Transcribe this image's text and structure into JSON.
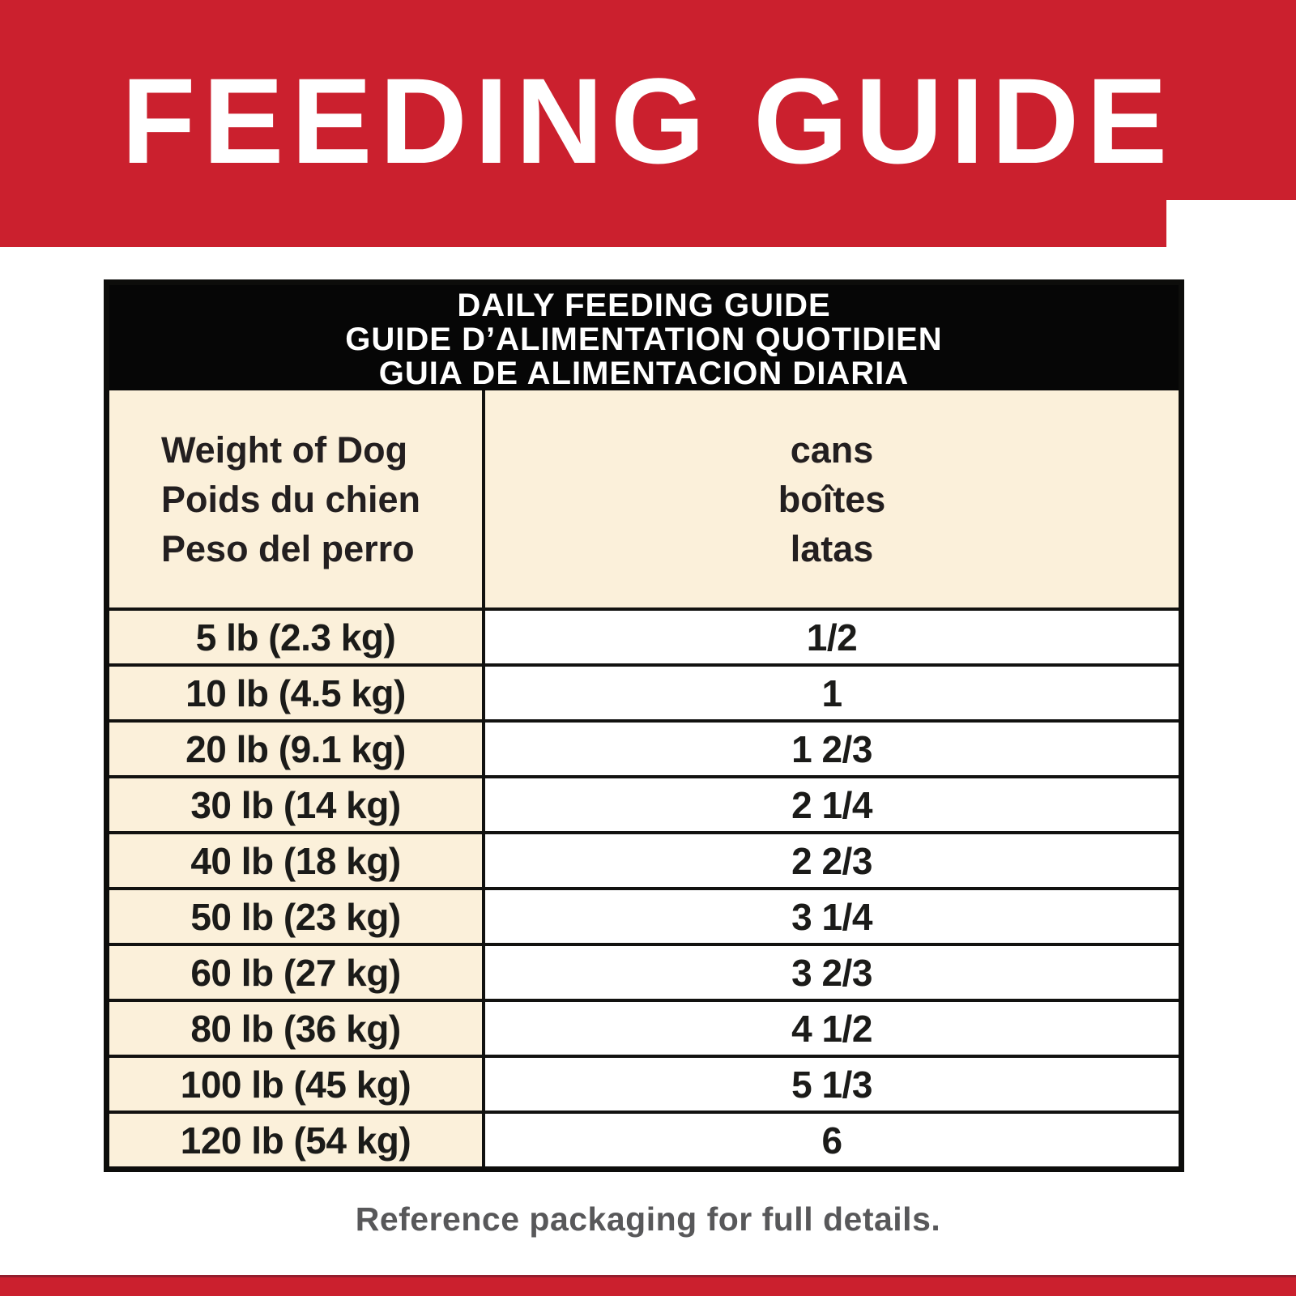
{
  "banner": {
    "title": "FEEDING GUIDE",
    "bg_color": "#cb202e",
    "text_color": "#ffffff"
  },
  "table": {
    "title_lines": [
      "DAILY FEEDING GUIDE",
      "GUIDE D’ALIMENTATION QUOTIDIEN",
      "GUIA DE ALIMENTACION DIARIA"
    ],
    "weight_header_lines": [
      "Weight of Dog",
      "Poids du chien",
      "Peso del perro"
    ],
    "cans_header_lines": [
      "cans",
      "boîtes",
      "latas"
    ],
    "rows": [
      {
        "weight": "5 lb (2.3 kg)",
        "cans": "1/2"
      },
      {
        "weight": "10 lb (4.5 kg)",
        "cans": "1"
      },
      {
        "weight": "20 lb (9.1 kg)",
        "cans": "1 2/3"
      },
      {
        "weight": "30 lb (14 kg)",
        "cans": "2 1/4"
      },
      {
        "weight": "40 lb (18 kg)",
        "cans": "2 2/3"
      },
      {
        "weight": "50 lb (23 kg)",
        "cans": "3 1/4"
      },
      {
        "weight": "60 lb (27 kg)",
        "cans": "3 2/3"
      },
      {
        "weight": "80 lb (36 kg)",
        "cans": "4 1/2"
      },
      {
        "weight": "100 lb (45 kg)",
        "cans": "5 1/3"
      },
      {
        "weight": "120 lb (54 kg)",
        "cans": "6"
      }
    ],
    "colors": {
      "title_bg": "#060606",
      "cell_cream": "#fbf0da",
      "cell_white": "#ffffff",
      "border": "#0d0d0b",
      "text": "#1b1b19"
    }
  },
  "footer": {
    "note": "Reference packaging for full details.",
    "color": "#58585a"
  }
}
